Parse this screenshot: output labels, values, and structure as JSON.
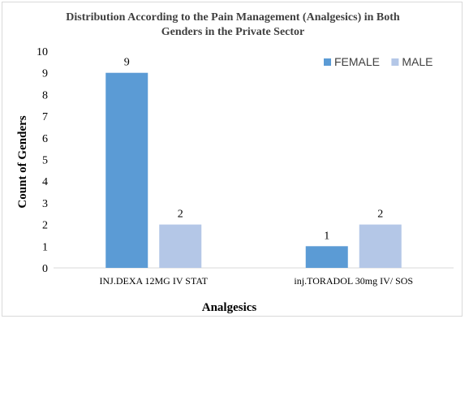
{
  "chart_data": {
    "type": "bar",
    "title_lines": [
      "Distribution According to the Pain Management (Analgesics) in Both",
      "Genders in the Private Sector"
    ],
    "xlabel": "Analgesics",
    "ylabel": "Count of Genders",
    "categories": [
      "INJ.DEXA 12MG IV  STAT",
      "inj.TORADOL 30mg IV/ SOS"
    ],
    "series": [
      {
        "name": "FEMALE",
        "values": [
          9,
          1
        ],
        "color": "#5b9bd5"
      },
      {
        "name": "MALE",
        "values": [
          2,
          2
        ],
        "color": "#b4c7e7"
      }
    ],
    "ylim": [
      0,
      10
    ],
    "yticks": [
      0,
      1,
      2,
      3,
      4,
      5,
      6,
      7,
      8,
      9,
      10
    ],
    "grid": false,
    "legend_position": "top-right",
    "data_labels": true
  }
}
